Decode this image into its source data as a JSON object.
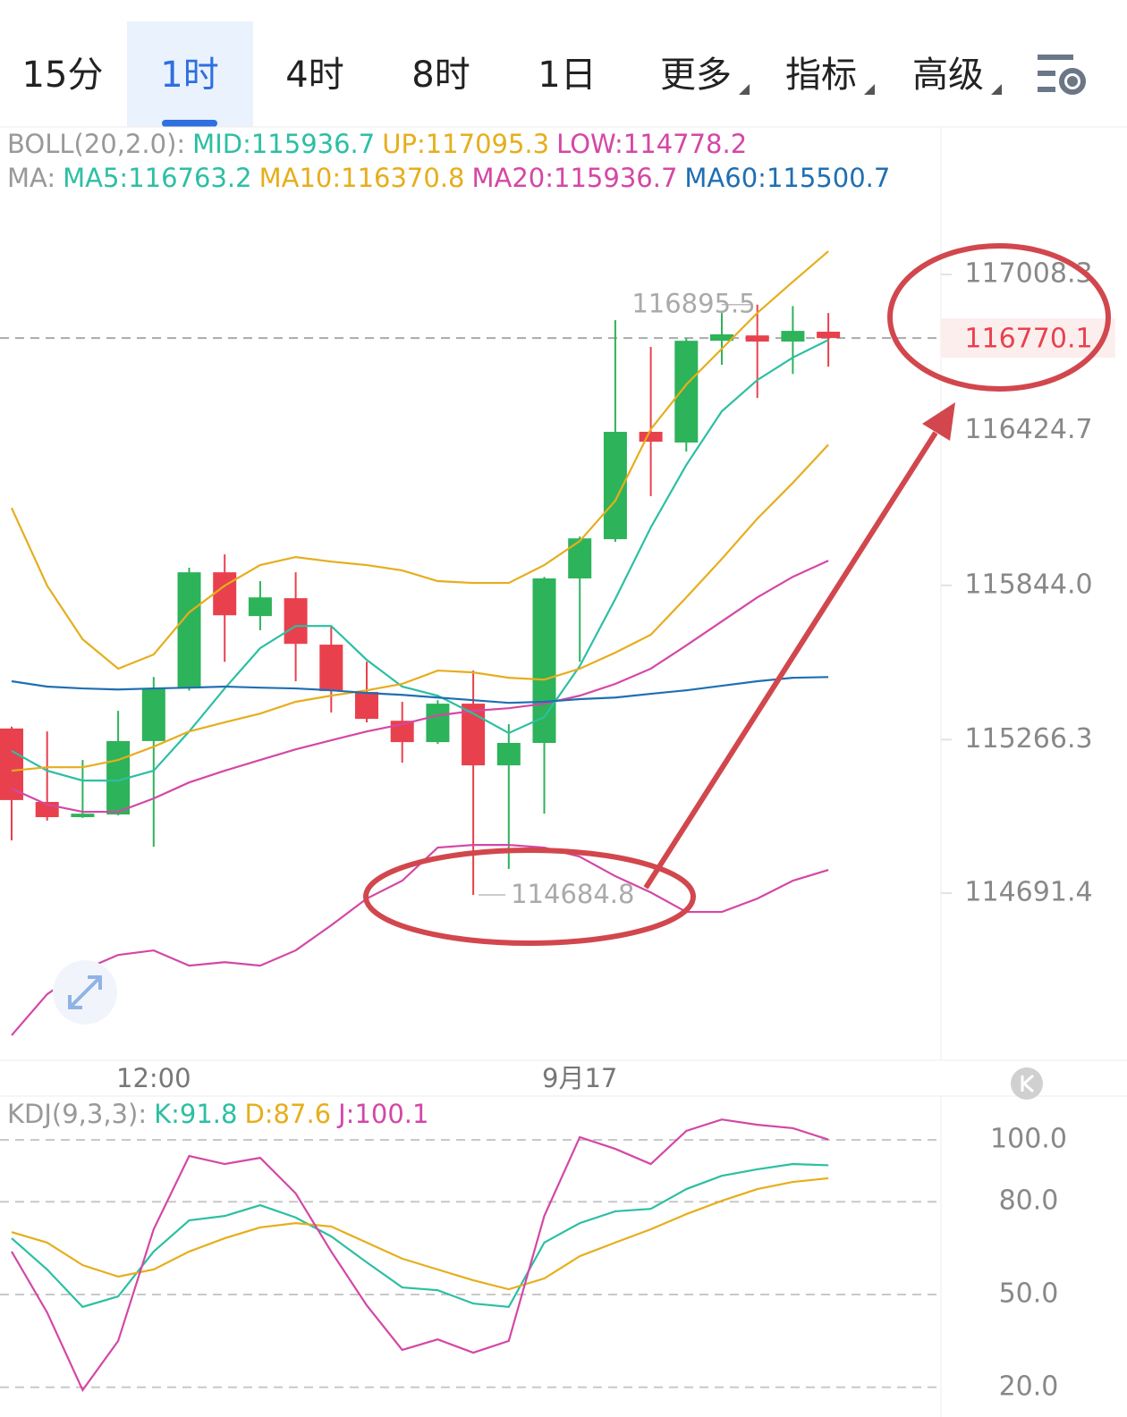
{
  "tabs": [
    {
      "label": "15分"
    },
    {
      "label": "1时"
    },
    {
      "label": "4时"
    },
    {
      "label": "8时"
    },
    {
      "label": "1日"
    },
    {
      "label": "更多",
      "menu": true
    },
    {
      "label": "指标",
      "menu": true
    },
    {
      "label": "高级",
      "menu": true
    }
  ],
  "active_tab": 1,
  "chart_data": [
    {
      "type": "candlestick",
      "indicators": [
        {
          "prefix": "BOLL(20,2.0):",
          "items": [
            {
              "text": "MID:115936.7",
              "color": "#2cbfa3"
            },
            {
              "text": "UP:117095.3",
              "color": "#e6ae1c"
            },
            {
              "text": "LOW:114778.2",
              "color": "#d447a6"
            }
          ]
        },
        {
          "prefix": "MA:",
          "items": [
            {
              "text": "MA5:116763.2",
              "color": "#2cbfa3"
            },
            {
              "text": "MA10:116370.8",
              "color": "#e6ae1c"
            },
            {
              "text": "MA20:115936.7",
              "color": "#d447a6"
            },
            {
              "text": "MA60:115500.7",
              "color": "#1f6fb2"
            }
          ]
        }
      ],
      "categories": [
        null,
        null,
        null,
        null,
        "12:00",
        null,
        null,
        null,
        null,
        null,
        null,
        null,
        null,
        null,
        null,
        null,
        "9月17",
        null,
        null,
        null,
        null,
        null,
        null,
        null
      ],
      "open": [
        115308,
        115033,
        114976,
        114986,
        115261,
        115458,
        115893,
        115729,
        115796,
        115622,
        115445,
        115337,
        115257,
        115401,
        115170,
        115254,
        115870,
        116017,
        116419,
        116379,
        116760,
        116780,
        116757,
        116794
      ],
      "high": [
        115315,
        115297,
        115190,
        115374,
        115501,
        115910,
        115960,
        115860,
        115893,
        115692,
        115558,
        115408,
        115414,
        115525,
        115324,
        115876,
        116027,
        116837,
        116737,
        116770,
        116864,
        116895.5,
        116890,
        116864
      ],
      "low": [
        114889,
        114963,
        114973,
        114983,
        114865,
        115450,
        115558,
        115676,
        115485,
        115368,
        115331,
        115180,
        115250,
        114684.8,
        114782,
        114989,
        115558,
        116007,
        116178,
        116345,
        116670,
        116546,
        116636,
        116663
      ],
      "close": [
        115040,
        114976,
        114989,
        115261,
        115458,
        115893,
        115732,
        115799,
        115625,
        115448,
        115344,
        115257,
        115401,
        115170,
        115254,
        115870,
        116020,
        116419,
        116382,
        116760,
        116784,
        116757,
        116797,
        116770.1
      ],
      "up_color": "#2db35a",
      "down_color": "#e8414d",
      "series": [
        {
          "color": "#e6ae1c",
          "values": [
            116134,
            115843,
            115642,
            115532,
            115585,
            115743,
            115843,
            115920,
            115950,
            115933,
            115920,
            115900,
            115860,
            115853,
            115853,
            115920,
            116010,
            116161,
            116429,
            116596,
            116730,
            116864,
            116981,
            117095.3
          ]
        },
        {
          "color": "#d447a6",
          "values": [
            114159,
            114313,
            114403,
            114460,
            114477,
            114420,
            114433,
            114420,
            114477,
            114571,
            114671,
            114738,
            114862,
            114872,
            114872,
            114862,
            114828,
            114755,
            114694,
            114621,
            114621,
            114671,
            114738,
            114778.2
          ]
        },
        {
          "color": "#d447a6",
          "values": [
            115083,
            115023,
            114996,
            114996,
            115046,
            115106,
            115150,
            115190,
            115230,
            115264,
            115297,
            115324,
            115357,
            115374,
            115384,
            115401,
            115431,
            115475,
            115532,
            115619,
            115709,
            115799,
            115876,
            115936.7
          ]
        },
        {
          "color": "#2cbfa3",
          "values": [
            115224,
            115150,
            115113,
            115113,
            115150,
            115297,
            115458,
            115609,
            115692,
            115692,
            115565,
            115465,
            115431,
            115364,
            115291,
            115351,
            115542,
            115793,
            116061,
            116295,
            116496,
            116613,
            116697,
            116763.2
          ]
        },
        {
          "color": "#e6ae1c",
          "values": [
            115150,
            115163,
            115163,
            115190,
            115240,
            115297,
            115331,
            115364,
            115408,
            115431,
            115451,
            115475,
            115525,
            115518,
            115498,
            115491,
            115532,
            115592,
            115659,
            115799,
            115943,
            116094,
            116228,
            116370.8
          ]
        },
        {
          "color": "#1f6fb2",
          "values": [
            115485,
            115465,
            115458,
            115454,
            115458,
            115461,
            115465,
            115461,
            115458,
            115451,
            115441,
            115434,
            115424,
            115414,
            115404,
            115408,
            115418,
            115424,
            115438,
            115451,
            115468,
            115485,
            115498,
            115500.7
          ]
        }
      ],
      "ylim": [
        114068.8,
        117550.7
      ],
      "yticks": [
        117008.3,
        116424.7,
        {
          "value": 115844.0,
          "label": "115844.0"
        },
        115266.3,
        114691.4
      ],
      "last_price": 116770.1,
      "last_price_color": "#e8414d",
      "high_label": 116895.5,
      "low_label": 114684.8
    },
    {
      "type": "line",
      "indicators": [
        {
          "prefix": "KDJ(9,3,3):",
          "items": [
            {
              "text": "K:91.8",
              "color": "#2cbfa3"
            },
            {
              "text": "D:87.6",
              "color": "#e6ae1c"
            },
            {
              "text": "J:100.1",
              "color": "#d447a6"
            }
          ]
        }
      ],
      "series": [
        {
          "color": "#2cbfa3",
          "values": [
            68.2,
            58.1,
            46.0,
            49.4,
            63.9,
            74.0,
            75.4,
            78.9,
            74.9,
            68.8,
            60.4,
            52.3,
            51.4,
            47.1,
            46.0,
            66.8,
            73.1,
            76.9,
            77.7,
            84.1,
            88.4,
            90.5,
            92.2,
            91.8
          ]
        },
        {
          "color": "#e6ae1c",
          "values": [
            70.2,
            66.8,
            59.5,
            55.8,
            58.1,
            63.9,
            68.2,
            71.7,
            73.1,
            72.0,
            66.8,
            61.6,
            58.1,
            54.6,
            51.7,
            55.2,
            62.4,
            66.8,
            71.1,
            76.0,
            80.3,
            84.1,
            86.4,
            87.6
          ]
        },
        {
          "color": "#d447a6",
          "values": [
            63.9,
            44.2,
            19.1,
            35.0,
            71.1,
            94.8,
            92.2,
            94.2,
            82.7,
            63.9,
            46.5,
            32.1,
            35.5,
            31.2,
            35.0,
            75.4,
            100.9,
            97.1,
            92.2,
            102.9,
            106.6,
            104.9,
            103.8,
            100.1
          ]
        }
      ],
      "ylim": [
        10.4,
        113.6
      ],
      "yticks": [
        {
          "value": 100,
          "label": "100.0"
        },
        {
          "value": 80,
          "label": "80.0"
        },
        {
          "value": 50,
          "label": "50.0"
        },
        {
          "value": 20,
          "label": "20.0"
        }
      ],
      "grid": true
    }
  ]
}
